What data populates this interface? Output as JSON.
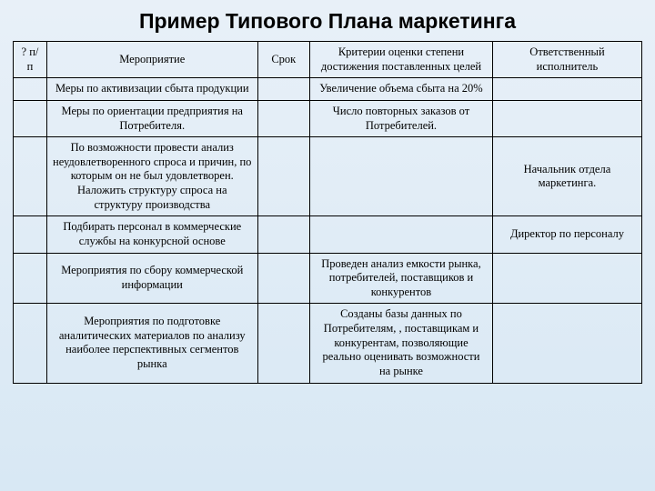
{
  "title": "Пример Типового Плана маркетинга",
  "table": {
    "columns": [
      "?\nп/п",
      "Мероприятие",
      "Срок",
      "Критерии оценки степени достижения поставленных целей",
      "Ответственный исполнитель"
    ],
    "rows": [
      {
        "num": "",
        "event": "Меры по активизации сбыта продукции",
        "term": "",
        "criteria": "Увеличение объема сбыта на 20%",
        "responsible": ""
      },
      {
        "num": "",
        "event": "Меры по ориентации предприятия на Потребителя.",
        "term": "",
        "criteria": "Число повторных заказов от Потребителей.",
        "responsible": ""
      },
      {
        "num": "",
        "event": "По возможности провести анализ неудовлетворенного спроса и причин, по которым он не был удовлетворен. Наложить структуру спроса на структуру производства",
        "term": "",
        "criteria": "",
        "responsible": "Начальник отдела маркетинга."
      },
      {
        "num": "",
        "event": "Подбирать персонал в коммерческие службы на конкурсной основе",
        "term": "",
        "criteria": "",
        "responsible": "Директор по персоналу"
      },
      {
        "num": "",
        "event": "Мероприятия по сбору коммерческой информации",
        "term": "",
        "criteria": "Проведен анализ емкости рынка, потребителей, поставщиков и конкурентов",
        "responsible": ""
      },
      {
        "num": "",
        "event": "Мероприятия по подготовке аналитических материалов по анализу наиболее перспективных сегментов рынка",
        "term": "",
        "criteria": "Созданы базы данных по Потребителям, , поставщикам и конкурентам, позволяющие реально оценивать возможности на рынке",
        "responsible": ""
      }
    ]
  }
}
